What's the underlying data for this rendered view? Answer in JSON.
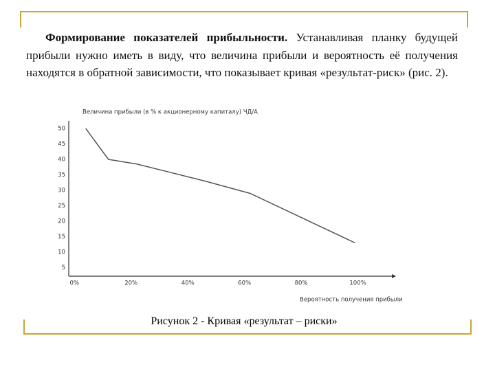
{
  "paragraph": {
    "heading": "Формирование показателей прибыльности.",
    "text": "Устанавливая планку будущей прибыли нужно иметь в виду, что величина прибыли и вероятность её получения находятся в обратной зависимости, что показывает кривая «результат-риск» (рис. 2)."
  },
  "chart_data": {
    "type": "line",
    "y_label": "Величина прибыли (в % к акционерному капиталу) ЧД/А",
    "x_label": "Вероятность получения прибыли",
    "x": [
      4,
      12,
      22,
      46,
      62,
      99
    ],
    "values": [
      50,
      40,
      38.5,
      33,
      29,
      13
    ],
    "color": "#555555",
    "xlim": [
      -2,
      112
    ],
    "ylim": [
      0,
      52
    ],
    "xticks": [
      {
        "value": 0,
        "label": "0%"
      },
      {
        "value": 20,
        "label": "20%"
      },
      {
        "value": 40,
        "label": "40%"
      },
      {
        "value": 60,
        "label": "60%"
      },
      {
        "value": 80,
        "label": "80%"
      },
      {
        "value": 100,
        "label": "100%"
      }
    ],
    "yticks": [
      5,
      10,
      15,
      20,
      25,
      30,
      35,
      40,
      45,
      50
    ],
    "grid": false
  },
  "caption": "Рисунок 2 - Кривая «результат – риски»"
}
